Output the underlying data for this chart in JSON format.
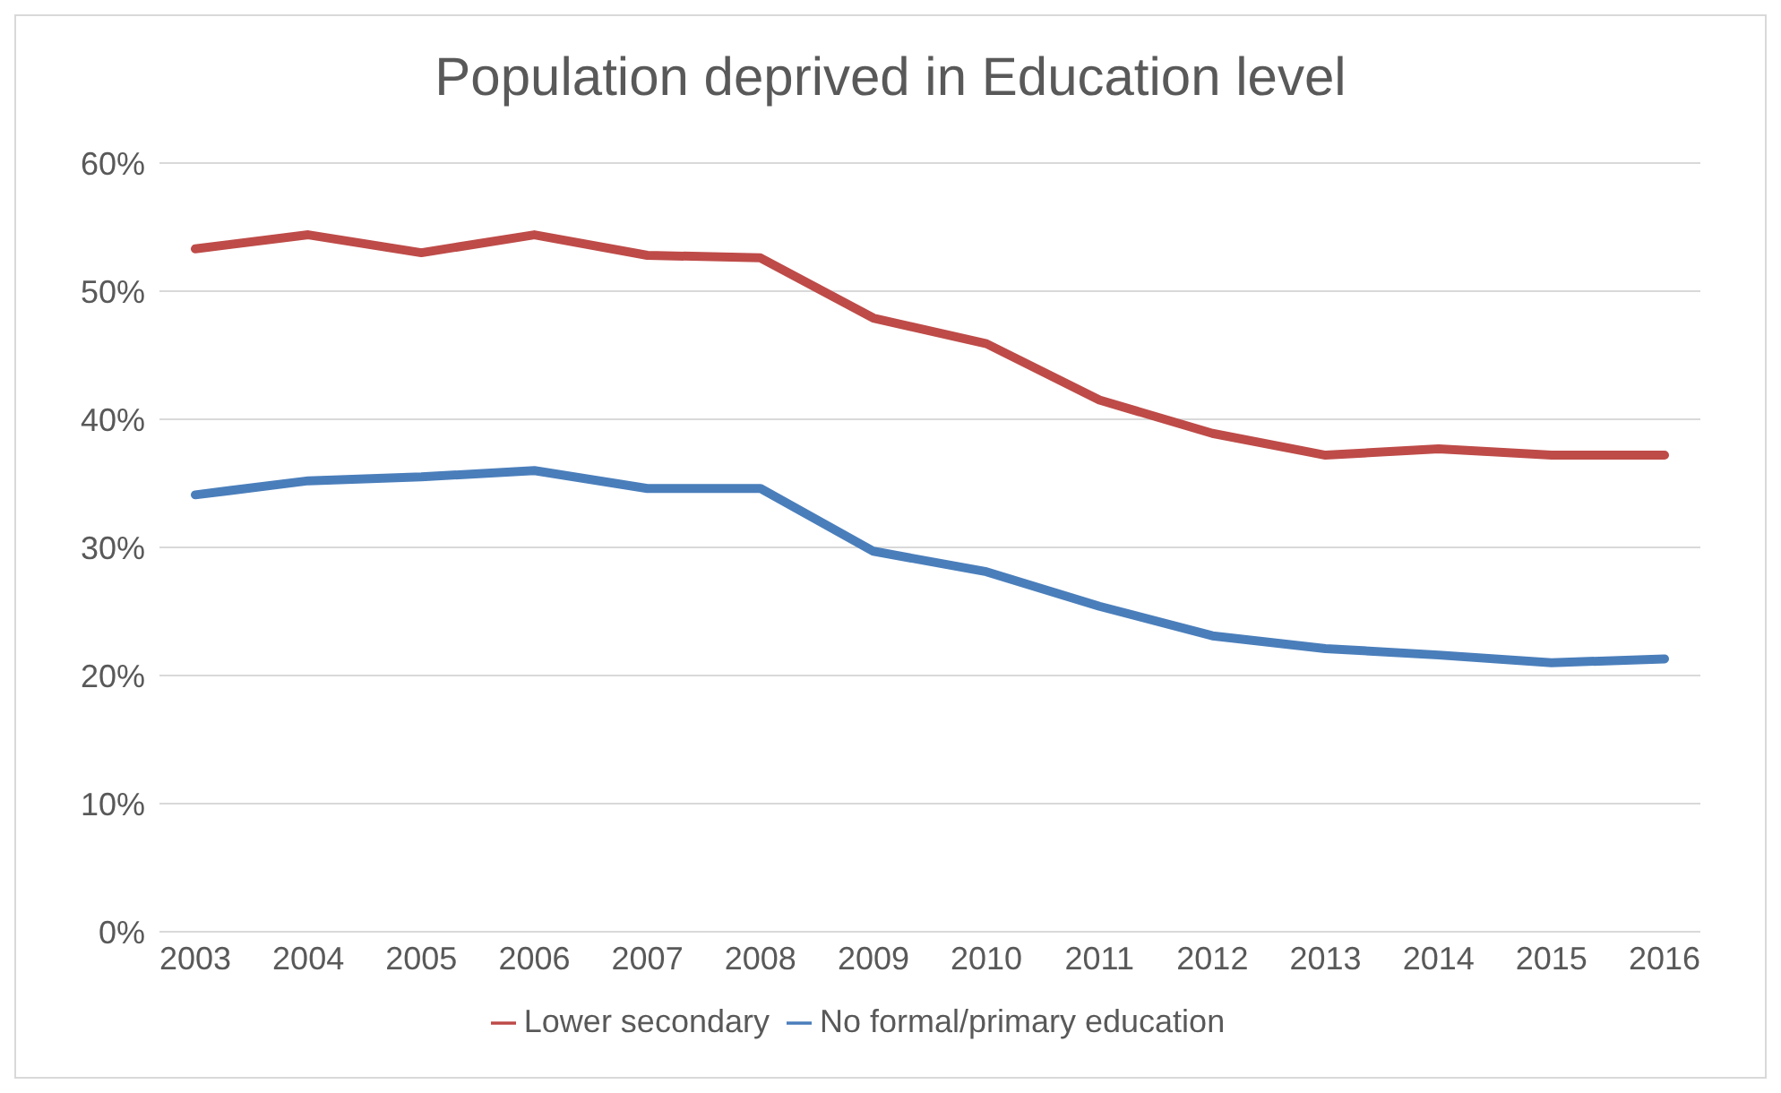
{
  "chart_data": {
    "type": "line",
    "title": "Population deprived in Education level",
    "categories": [
      "2003",
      "2004",
      "2005",
      "2006",
      "2007",
      "2008",
      "2009",
      "2010",
      "2011",
      "2012",
      "2013",
      "2014",
      "2015",
      "2016"
    ],
    "series": [
      {
        "name": "No formal/primary education",
        "color": "#4a7ebb",
        "values": [
          34.1,
          35.2,
          35.5,
          36.0,
          34.6,
          34.6,
          29.7,
          28.1,
          25.4,
          23.1,
          22.1,
          21.6,
          21.0,
          21.3
        ]
      },
      {
        "name": "Lower secondary",
        "color": "#be4b48",
        "values": [
          53.3,
          54.4,
          53.0,
          54.4,
          52.8,
          52.6,
          47.9,
          45.9,
          41.5,
          38.9,
          37.2,
          37.7,
          37.2,
          37.2
        ]
      }
    ],
    "ylim": [
      0,
      60
    ],
    "yticks": [
      {
        "value": 0,
        "label": "0%"
      },
      {
        "value": 10,
        "label": "10%"
      },
      {
        "value": 20,
        "label": "20%"
      },
      {
        "value": 30,
        "label": "30%"
      },
      {
        "value": 40,
        "label": "40%"
      },
      {
        "value": 50,
        "label": "50%"
      },
      {
        "value": 60,
        "label": "60%"
      }
    ],
    "grid": "y",
    "legend": "bottom",
    "marker": "none",
    "line_style": "solid"
  }
}
